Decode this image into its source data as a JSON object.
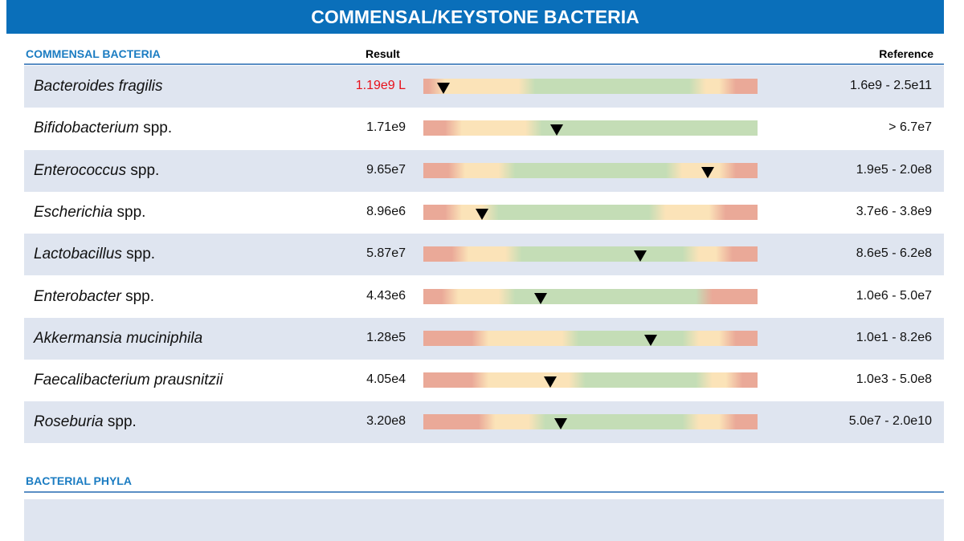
{
  "header": {
    "title": "COMMENSAL/KEYSTONE BACTERIA"
  },
  "sections": [
    {
      "title": "COMMENSAL BACTERIA",
      "columns": {
        "result": "Result",
        "reference": "Reference"
      },
      "rows": [
        {
          "name": "Bacteroides fragilis",
          "result": "1.19e9 L",
          "reference": "1.6e9 - 2.5e11"
        },
        {
          "name": "Bifidobacterium",
          "suffix": "spp.",
          "result": "1.71e9",
          "reference": "> 6.7e7"
        },
        {
          "name": "Enterococcus",
          "suffix": "spp.",
          "result": "9.65e7",
          "reference": "1.9e5 - 2.0e8"
        },
        {
          "name": "Escherichia",
          "suffix": "spp.",
          "result": "8.96e6",
          "reference": "3.7e6 - 3.8e9"
        },
        {
          "name": "Lactobacillus",
          "suffix": "spp.",
          "result": "5.87e7",
          "reference": "8.6e5 - 6.2e8"
        },
        {
          "name": "Enterobacter",
          "suffix": "spp.",
          "result": "4.43e6",
          "reference": "1.0e6 - 5.0e7"
        },
        {
          "name": "Akkermansia muciniphila",
          "result": "1.28e5",
          "reference": "1.0e1 - 8.2e6"
        },
        {
          "name": "Faecalibacterium prausnitzii",
          "result": "4.05e4",
          "reference": "1.0e3 - 5.0e8"
        },
        {
          "name": "Roseburia",
          "suffix": "spp.",
          "result": "3.20e8",
          "reference": "5.0e7 - 2.0e10"
        }
      ]
    },
    {
      "title": "BACTERIAL PHYLA"
    }
  ]
}
